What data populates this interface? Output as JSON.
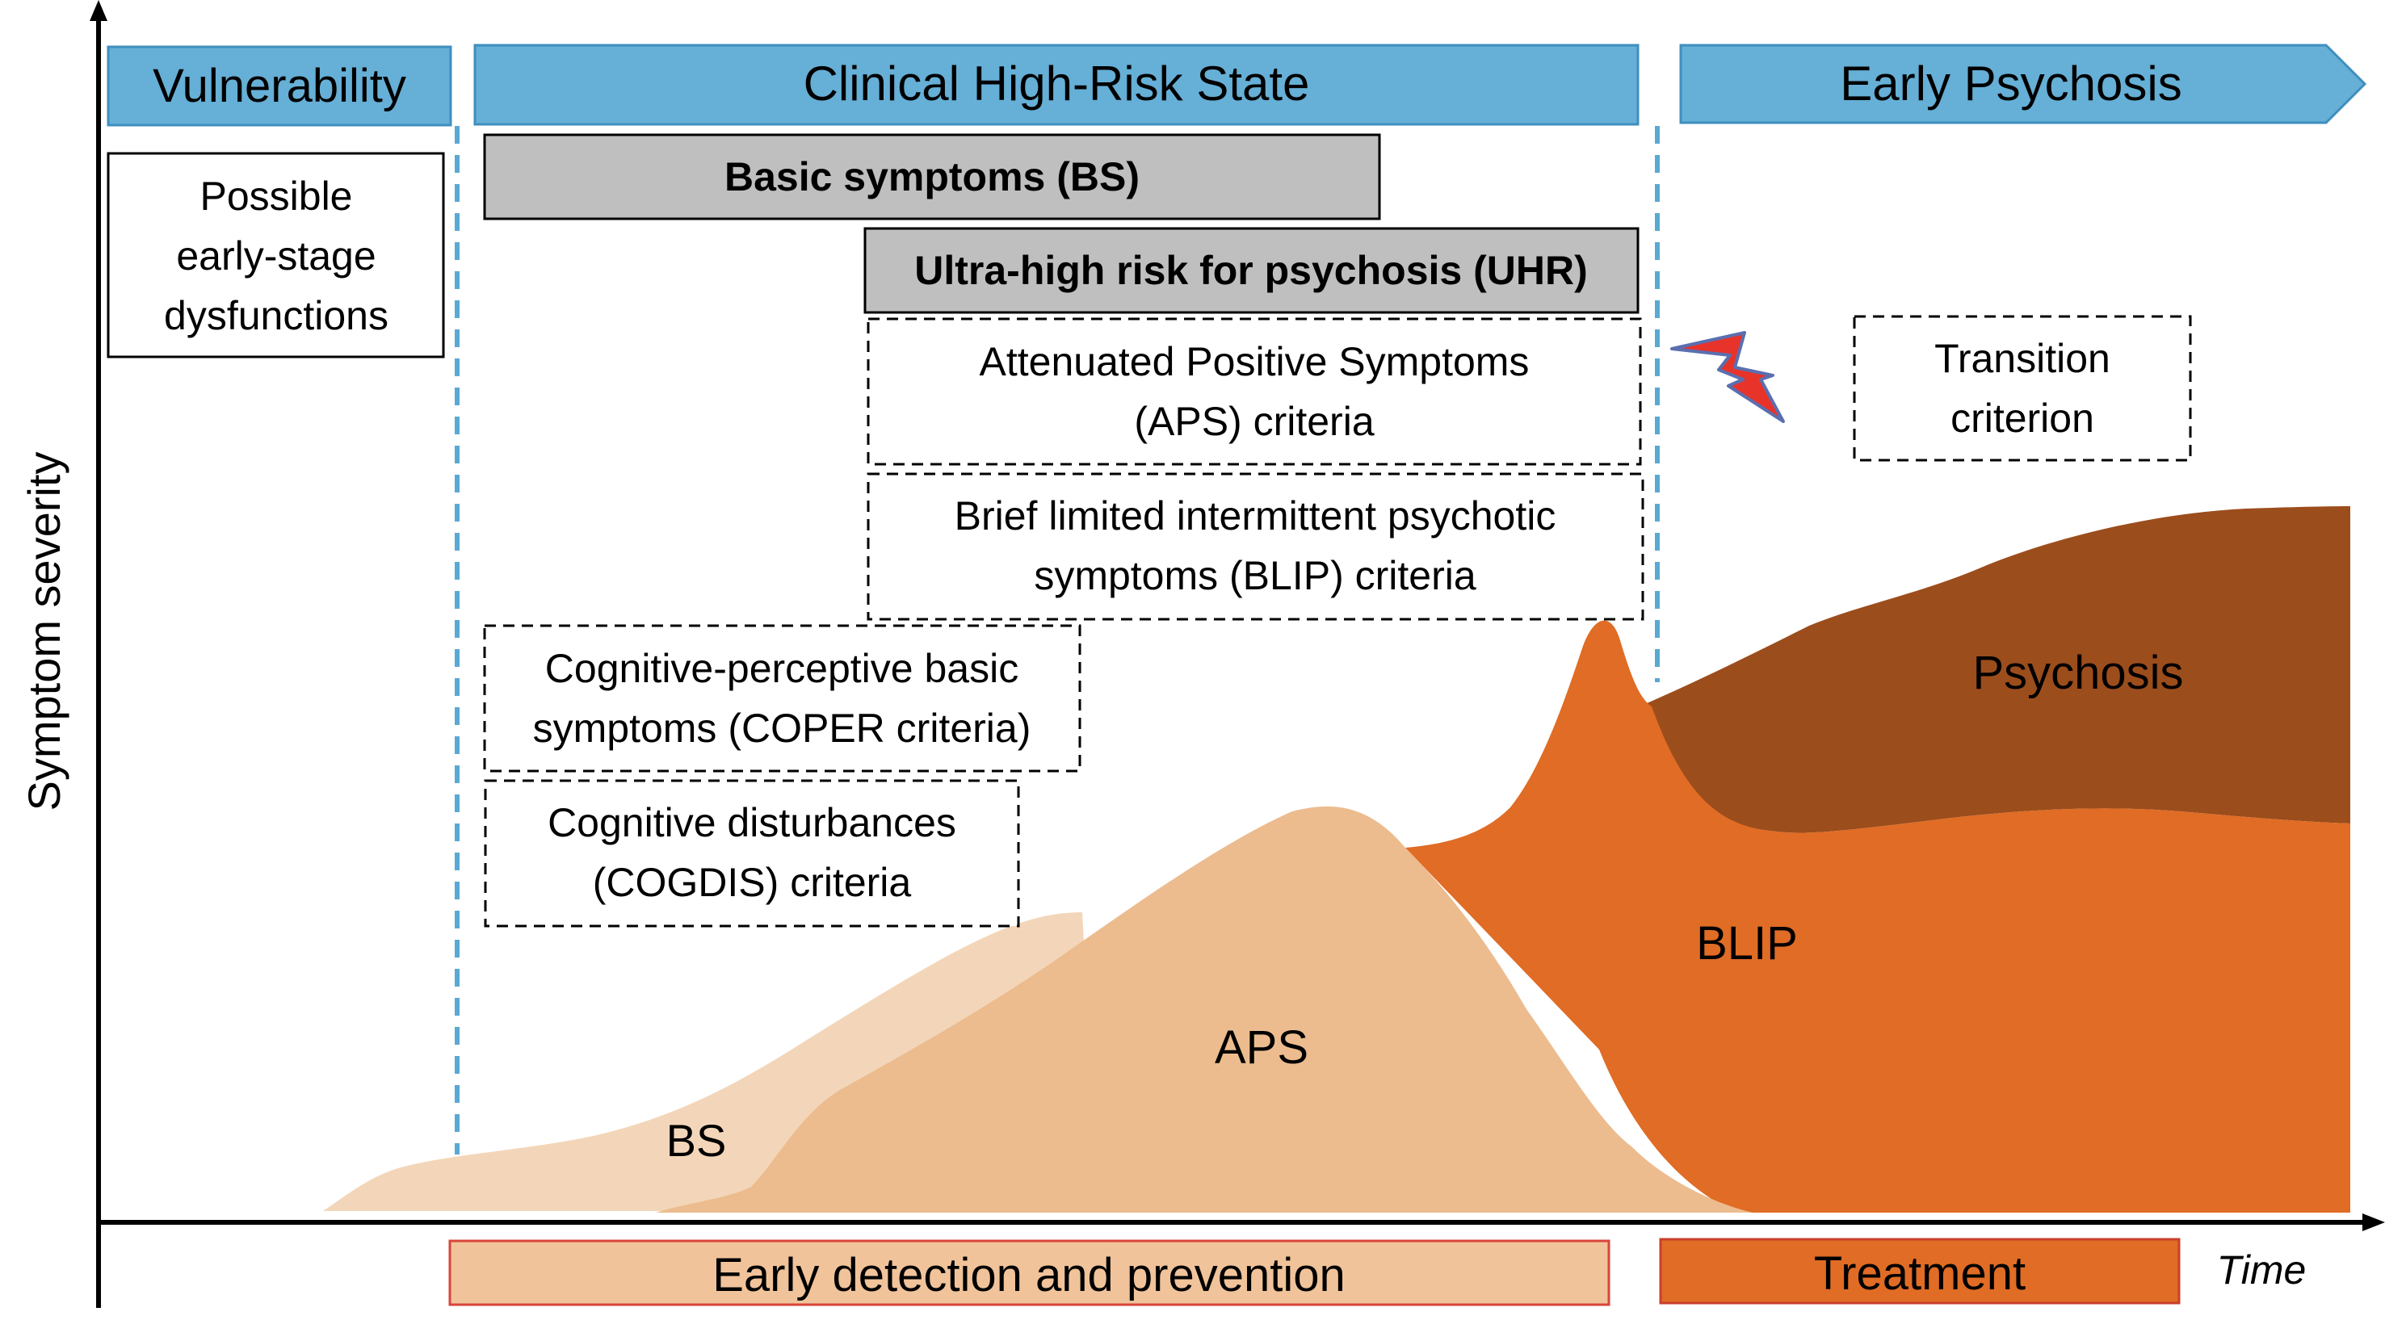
{
  "axes": {
    "y_label": "Symptom severity",
    "x_label": "Time"
  },
  "phases": {
    "vulnerability": "Vulnerability",
    "clinical_high_risk": "Clinical High-Risk State",
    "early_psychosis": "Early Psychosis"
  },
  "boxes": {
    "early_dysfunctions": [
      "Possible",
      "early-stage",
      "dysfunctions"
    ],
    "basic_symptoms": "Basic symptoms (BS)",
    "uhr": "Ultra-high risk for psychosis (UHR)",
    "aps_criteria": [
      "Attenuated Positive Symptoms",
      "(APS) criteria"
    ],
    "blip_criteria": [
      "Brief limited intermittent psychotic",
      "symptoms (BLIP) criteria"
    ],
    "coper_criteria": [
      "Cognitive-perceptive basic",
      "symptoms (COPER criteria)"
    ],
    "cogdis_criteria": [
      "Cognitive disturbances",
      "(COGDIS) criteria"
    ],
    "transition_criterion": [
      "Transition",
      "criterion"
    ]
  },
  "areas": {
    "bs": "BS",
    "aps": "APS",
    "blip": "BLIP",
    "psychosis": "Psychosis"
  },
  "bottom_bars": {
    "early_detection": "Early detection and prevention",
    "treatment": "Treatment"
  },
  "colors": {
    "phase_header_fill": "#66afd6",
    "phase_header_stroke": "#3f8fbf",
    "divider": "#5aa9d3",
    "grey_box": "#bfbfbf",
    "bs_area": "#f3d6b9",
    "aps_area": "#ecbc8f",
    "blip_area": "#e06c25",
    "psychosis_area": "#9c4d1c",
    "lightning": "#e8332a",
    "lightning_stroke": "#5a6fb0",
    "early_detection_fill": "#f0c39a",
    "early_detection_stroke": "#d9453a",
    "treatment_fill": "#e06c25",
    "treatment_stroke": "#c9402c"
  }
}
